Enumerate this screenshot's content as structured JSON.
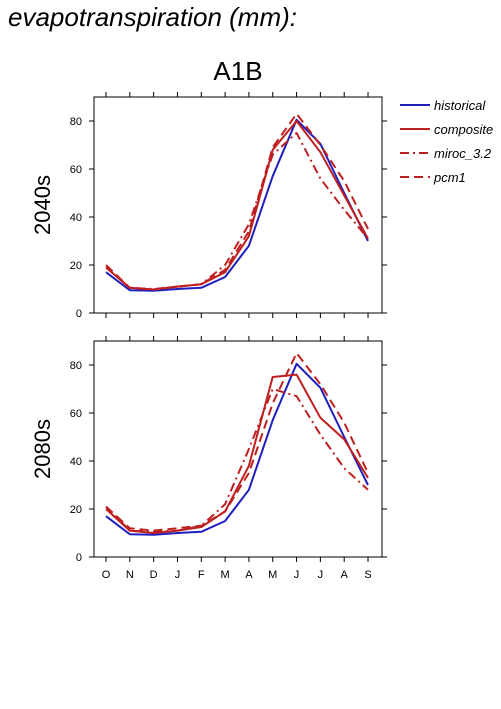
{
  "page_title": "evapotranspiration (mm):",
  "scenario_title": "A1B",
  "legend": [
    {
      "key": "historical",
      "label": "historical"
    },
    {
      "key": "composite",
      "label": "composite"
    },
    {
      "key": "miroc",
      "label": "miroc_3.2"
    },
    {
      "key": "pcm1",
      "label": "pcm1"
    }
  ],
  "styles": {
    "historical": {
      "color": "#1f1fbf",
      "dash": "solid"
    },
    "composite": {
      "color": "#bf1f1f",
      "dash": "solid"
    },
    "miroc": {
      "color": "#bf1f1f",
      "dash": "dash-dot"
    },
    "pcm1": {
      "color": "#bf1f1f",
      "dash": "dashed"
    }
  },
  "chart_data": [
    {
      "type": "line",
      "panel_label": "2040s",
      "categories": [
        "O",
        "N",
        "D",
        "J",
        "F",
        "M",
        "A",
        "M",
        "J",
        "J",
        "A",
        "S"
      ],
      "ylim": [
        0,
        90
      ],
      "yticks": [
        0,
        20,
        40,
        60,
        80
      ],
      "grid": false,
      "legend_position": "right",
      "series": [
        {
          "name": "historical",
          "key": "historical",
          "values": [
            17,
            9.5,
            9.3,
            10,
            10.5,
            15,
            28,
            57,
            80.5,
            70.5,
            50,
            30
          ]
        },
        {
          "name": "composite",
          "key": "composite",
          "values": [
            19,
            10.5,
            9.8,
            11,
            12,
            17,
            32,
            68,
            80,
            67,
            49,
            31
          ]
        },
        {
          "name": "miroc_3.2",
          "key": "miroc",
          "values": [
            19,
            10.5,
            10,
            11,
            12,
            20,
            37,
            66,
            75,
            56,
            43,
            31
          ]
        },
        {
          "name": "pcm1",
          "key": "pcm1",
          "values": [
            20,
            10.5,
            9.8,
            11,
            12,
            18,
            34,
            69,
            83,
            70,
            55,
            35
          ]
        }
      ]
    },
    {
      "type": "line",
      "panel_label": "2080s",
      "categories": [
        "O",
        "N",
        "D",
        "J",
        "F",
        "M",
        "A",
        "M",
        "J",
        "J",
        "A",
        "S"
      ],
      "ylim": [
        0,
        90
      ],
      "yticks": [
        0,
        20,
        40,
        60,
        80
      ],
      "grid": false,
      "legend_position": "none",
      "series": [
        {
          "name": "historical",
          "key": "historical",
          "values": [
            17,
            9.5,
            9.3,
            10,
            10.5,
            15,
            28,
            57,
            80.5,
            70.5,
            50,
            30
          ]
        },
        {
          "name": "composite",
          "key": "composite",
          "values": [
            20,
            11,
            10,
            11,
            12.5,
            19,
            38,
            75,
            76,
            58,
            49,
            33
          ]
        },
        {
          "name": "miroc_3.2",
          "key": "miroc",
          "values": [
            21,
            11,
            10.5,
            11,
            13,
            22,
            45,
            70,
            67,
            51,
            37,
            28
          ]
        },
        {
          "name": "pcm1",
          "key": "pcm1",
          "values": [
            21,
            12,
            11,
            12,
            13,
            19,
            35,
            64,
            85,
            72,
            56,
            35
          ]
        }
      ]
    }
  ]
}
